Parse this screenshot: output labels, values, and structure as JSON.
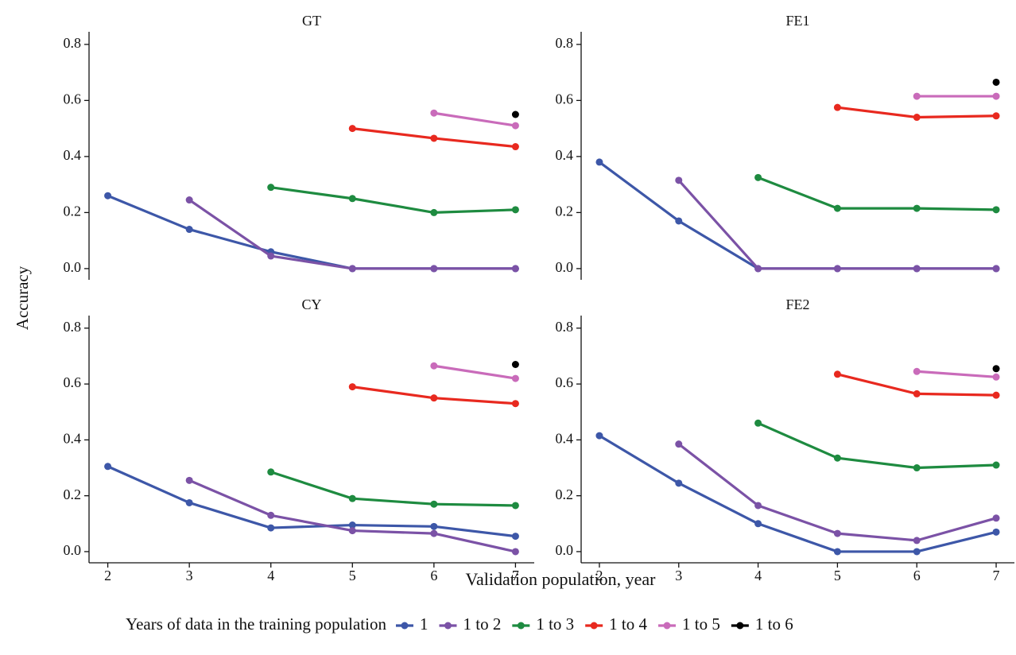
{
  "ylabel": "Accuracy",
  "xlabel": "Validation population, year",
  "legend_title": "Years of data in the training population",
  "chart_data": [
    {
      "type": "line",
      "title": "GT",
      "x": [
        2,
        3,
        4,
        5,
        6,
        7
      ],
      "xlim": [
        1.77,
        7.23
      ],
      "ylim": [
        -0.04,
        0.845
      ],
      "yticks": [
        {
          "value": 0,
          "label": "0.0"
        },
        0.2,
        0.4,
        0.6,
        0.8
      ],
      "series": [
        {
          "name": "1",
          "color": "#3d57a8",
          "values": [
            0.26,
            0.14,
            0.06,
            0,
            0,
            0
          ]
        },
        {
          "name": "1 to 2",
          "color": "#7b52a6",
          "values": [
            null,
            0.245,
            0.045,
            0,
            0,
            0
          ]
        },
        {
          "name": "1 to 3",
          "color": "#1e8b40",
          "values": [
            null,
            null,
            0.29,
            0.25,
            0.2,
            0.21
          ]
        },
        {
          "name": "1 to 4",
          "color": "#e8291f",
          "values": [
            null,
            null,
            null,
            0.5,
            0.465,
            0.435
          ]
        },
        {
          "name": "1 to 5",
          "color": "#c96bba",
          "values": [
            null,
            null,
            null,
            null,
            0.555,
            0.51
          ]
        },
        {
          "name": "1 to 6",
          "color": "#000000",
          "values": [
            null,
            null,
            null,
            null,
            null,
            0.55
          ]
        }
      ]
    },
    {
      "type": "line",
      "title": "FE1",
      "x": [
        2,
        3,
        4,
        5,
        6,
        7
      ],
      "xlim": [
        1.77,
        7.23
      ],
      "ylim": [
        -0.04,
        0.845
      ],
      "yticks": [
        {
          "value": 0,
          "label": "0.0"
        },
        0.2,
        0.4,
        0.6,
        0.8
      ],
      "series": [
        {
          "name": "1",
          "color": "#3d57a8",
          "values": [
            0.38,
            0.17,
            0,
            0,
            0,
            0
          ]
        },
        {
          "name": "1 to 2",
          "color": "#7b52a6",
          "values": [
            null,
            0.315,
            0,
            0,
            0,
            0
          ]
        },
        {
          "name": "1 to 3",
          "color": "#1e8b40",
          "values": [
            null,
            null,
            0.325,
            0.215,
            0.215,
            0.21
          ]
        },
        {
          "name": "1 to 4",
          "color": "#e8291f",
          "values": [
            null,
            null,
            null,
            0.575,
            0.54,
            0.545
          ]
        },
        {
          "name": "1 to 5",
          "color": "#c96bba",
          "values": [
            null,
            null,
            null,
            null,
            0.615,
            0.615
          ]
        },
        {
          "name": "1 to 6",
          "color": "#000000",
          "values": [
            null,
            null,
            null,
            null,
            null,
            0.665
          ]
        }
      ]
    },
    {
      "type": "line",
      "title": "CY",
      "x": [
        2,
        3,
        4,
        5,
        6,
        7
      ],
      "xlim": [
        1.77,
        7.23
      ],
      "ylim": [
        -0.04,
        0.845
      ],
      "xticks": [
        2,
        3,
        4,
        5,
        6,
        7
      ],
      "yticks": [
        {
          "value": 0,
          "label": "0.0"
        },
        0.2,
        0.4,
        0.6,
        0.8
      ],
      "series": [
        {
          "name": "1",
          "color": "#3d57a8",
          "values": [
            0.305,
            0.175,
            0.085,
            0.095,
            0.09,
            0.055
          ]
        },
        {
          "name": "1 to 2",
          "color": "#7b52a6",
          "values": [
            null,
            0.255,
            0.13,
            0.075,
            0.065,
            0
          ]
        },
        {
          "name": "1 to 3",
          "color": "#1e8b40",
          "values": [
            null,
            null,
            0.285,
            0.19,
            0.17,
            0.165
          ]
        },
        {
          "name": "1 to 4",
          "color": "#e8291f",
          "values": [
            null,
            null,
            null,
            0.59,
            0.55,
            0.53
          ]
        },
        {
          "name": "1 to 5",
          "color": "#c96bba",
          "values": [
            null,
            null,
            null,
            null,
            0.665,
            0.62
          ]
        },
        {
          "name": "1 to 6",
          "color": "#000000",
          "values": [
            null,
            null,
            null,
            null,
            null,
            0.67
          ]
        }
      ]
    },
    {
      "type": "line",
      "title": "FE2",
      "x": [
        2,
        3,
        4,
        5,
        6,
        7
      ],
      "xlim": [
        1.77,
        7.23
      ],
      "ylim": [
        -0.04,
        0.845
      ],
      "xticks": [
        2,
        3,
        4,
        5,
        6,
        7
      ],
      "yticks": [
        {
          "value": 0,
          "label": "0.0"
        },
        0.2,
        0.4,
        0.6,
        0.8
      ],
      "series": [
        {
          "name": "1",
          "color": "#3d57a8",
          "values": [
            0.415,
            0.245,
            0.1,
            0,
            0,
            0.07
          ]
        },
        {
          "name": "1 to 2",
          "color": "#7b52a6",
          "values": [
            null,
            0.385,
            0.165,
            0.065,
            0.04,
            0.12
          ]
        },
        {
          "name": "1 to 3",
          "color": "#1e8b40",
          "values": [
            null,
            null,
            0.46,
            0.335,
            0.3,
            0.31
          ]
        },
        {
          "name": "1 to 4",
          "color": "#e8291f",
          "values": [
            null,
            null,
            null,
            0.635,
            0.565,
            0.56
          ]
        },
        {
          "name": "1 to 5",
          "color": "#c96bba",
          "values": [
            null,
            null,
            null,
            null,
            0.645,
            0.625
          ]
        },
        {
          "name": "1 to 6",
          "color": "#000000",
          "values": [
            null,
            null,
            null,
            null,
            null,
            0.655
          ]
        }
      ]
    }
  ]
}
